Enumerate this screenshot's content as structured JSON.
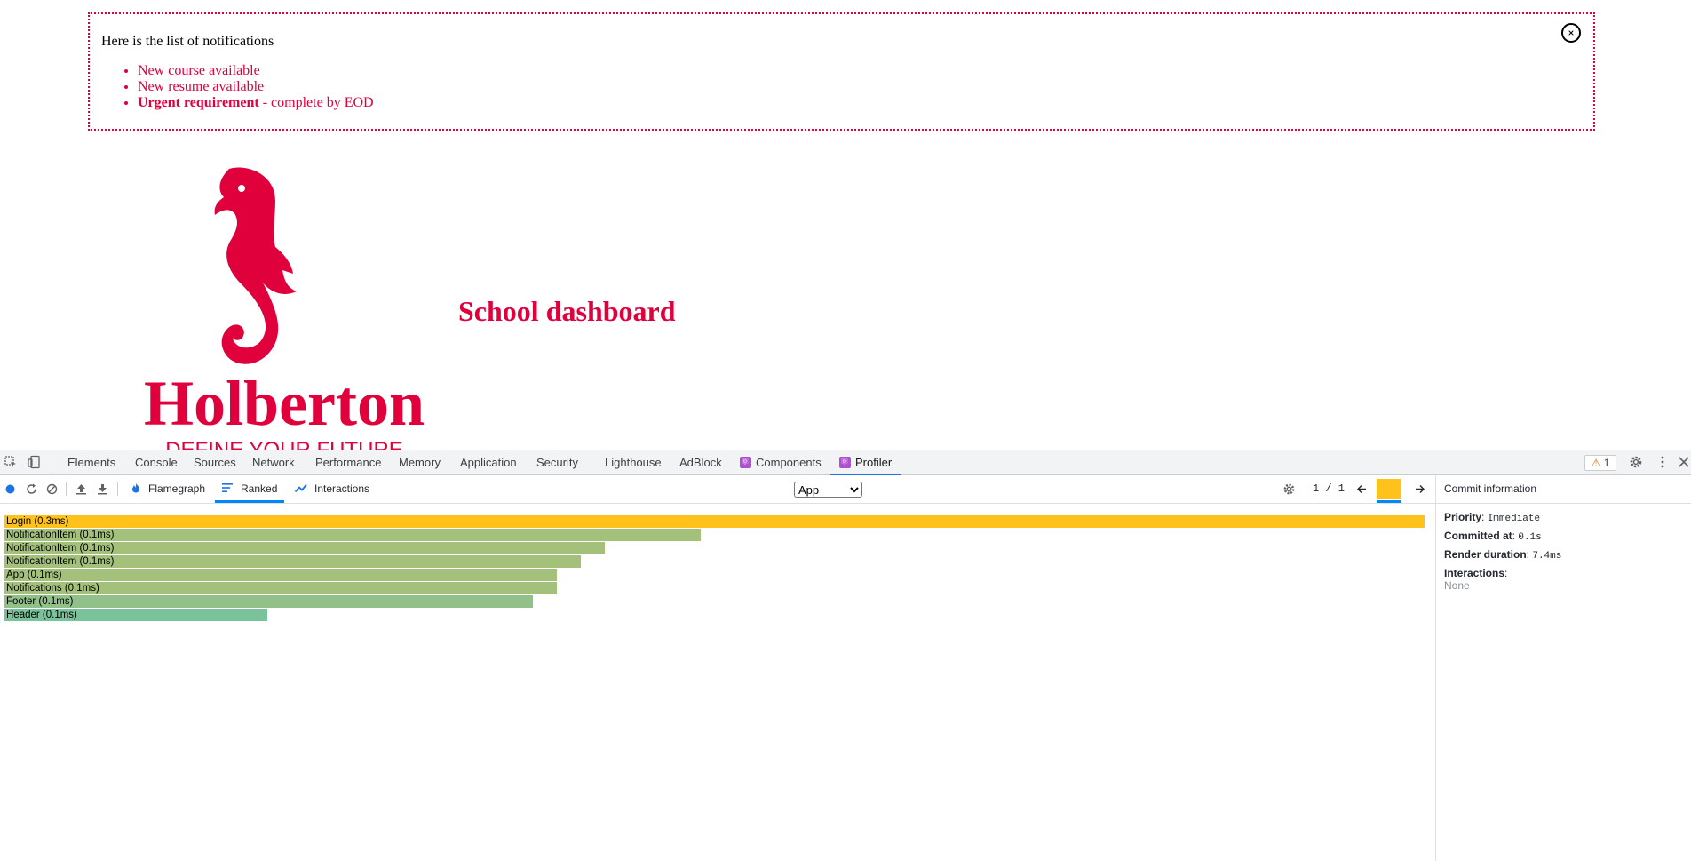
{
  "page": {
    "notifications": {
      "title": "Here is the list of notifications",
      "items": [
        {
          "text": "New course available"
        },
        {
          "text": "New resume available"
        },
        {
          "strong": "Urgent requirement",
          "rest": " - complete by EOD"
        }
      ],
      "close_label": "Close"
    },
    "logo": {
      "wordmark": "Holberton",
      "tagline": "DEFINE YOUR FUTURE"
    },
    "header_title": "School dashboard",
    "colors": {
      "brand": "#e0003c"
    }
  },
  "devtools": {
    "tabs": [
      "Elements",
      "Console",
      "Sources",
      "Network",
      "Performance",
      "Memory",
      "Application",
      "Security",
      "Lighthouse",
      "AdBlock",
      "Components",
      "Profiler"
    ],
    "active_tab": "Profiler",
    "warning_count": "1",
    "profiler": {
      "views": [
        "Flamegraph",
        "Ranked",
        "Interactions"
      ],
      "active_view": "Ranked",
      "root_select": {
        "value": "App",
        "options": [
          "App"
        ]
      },
      "commit_counter": "1 / 1",
      "ranked": [
        {
          "name": "Login",
          "duration": "0.3ms",
          "relative": 1.0,
          "color": "#ffc21a"
        },
        {
          "name": "NotificationItem",
          "duration": "0.1ms",
          "relative": 0.49,
          "color": "#a3c17a"
        },
        {
          "name": "NotificationItem",
          "duration": "0.1ms",
          "relative": 0.423,
          "color": "#a3c17a"
        },
        {
          "name": "NotificationItem",
          "duration": "0.1ms",
          "relative": 0.406,
          "color": "#a3c17a"
        },
        {
          "name": "App",
          "duration": "0.1ms",
          "relative": 0.389,
          "color": "#a3c17a"
        },
        {
          "name": "Notifications",
          "duration": "0.1ms",
          "relative": 0.389,
          "color": "#a3c17a"
        },
        {
          "name": "Footer",
          "duration": "0.1ms",
          "relative": 0.372,
          "color": "#91c088"
        },
        {
          "name": "Header",
          "duration": "0.1ms",
          "relative": 0.185,
          "color": "#79c29a"
        }
      ],
      "commit_info": {
        "title": "Commit information",
        "priority_label": "Priority",
        "priority": "Immediate",
        "committed_label": "Committed at",
        "committed": "0.1s",
        "render_label": "Render duration",
        "render": "7.4ms",
        "interactions_label": "Interactions",
        "interactions": "None"
      }
    }
  }
}
